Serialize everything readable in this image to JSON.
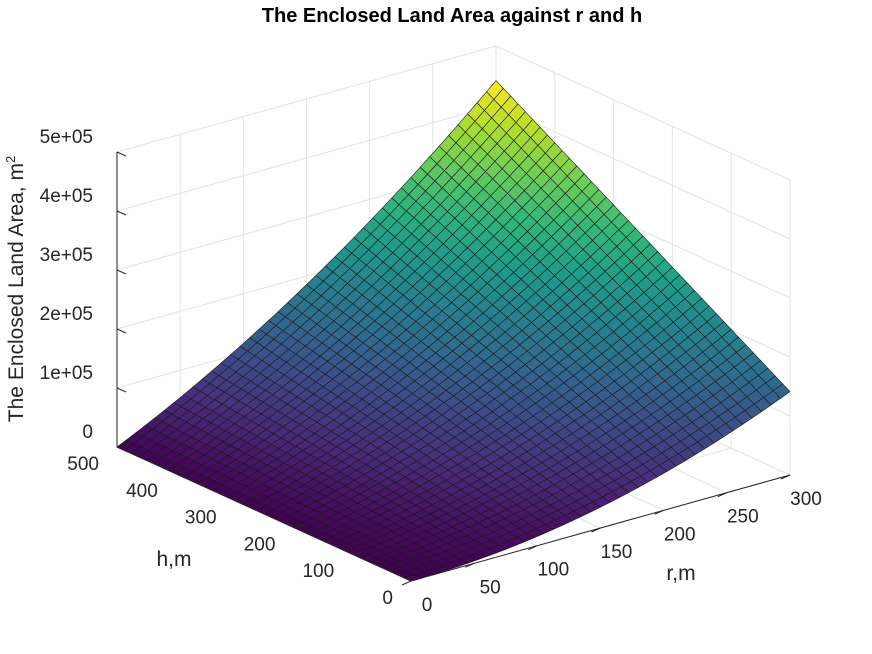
{
  "chart_data": {
    "type": "surface",
    "title": "The Enclosed Land Area against r and h",
    "xlabel": "r,m",
    "ylabel": "h,m",
    "zlabel": "The Enclosed Land Area, m",
    "zlabel_superscript": "2",
    "xlim": [
      0,
      300
    ],
    "ylim": [
      0,
      500
    ],
    "zlim": [
      0,
      500000
    ],
    "x_ticks": [
      0,
      50,
      100,
      150,
      200,
      250,
      300
    ],
    "x_tick_labels": [
      "0",
      "50",
      "100",
      "150",
      "200",
      "250",
      "300"
    ],
    "y_ticks": [
      0,
      100,
      200,
      300,
      400,
      500
    ],
    "y_tick_labels": [
      "0",
      "100",
      "200",
      "300",
      "400",
      "500"
    ],
    "z_ticks": [
      0,
      100000,
      200000,
      300000,
      400000,
      500000
    ],
    "z_tick_labels": [
      "0",
      "1e+05",
      "2e+05",
      "3e+05",
      "4e+05",
      "5e+05"
    ],
    "grid": true,
    "colormap": [
      "#440154",
      "#482878",
      "#3e4989",
      "#31688e",
      "#26828e",
      "#1f9e89",
      "#35b779",
      "#6ece58",
      "#b5de2b",
      "#fde725"
    ],
    "surface": {
      "r_range": [
        0,
        300
      ],
      "h_range": [
        0,
        500
      ],
      "r_steps": 40,
      "h_steps": 40,
      "samples": [
        {
          "r": 0,
          "h": 0,
          "area": 0
        },
        {
          "r": 300,
          "h": 0,
          "area": 141372
        },
        {
          "r": 0,
          "h": 500,
          "area": 0
        },
        {
          "r": 300,
          "h": 500,
          "area": 441372
        }
      ]
    }
  }
}
